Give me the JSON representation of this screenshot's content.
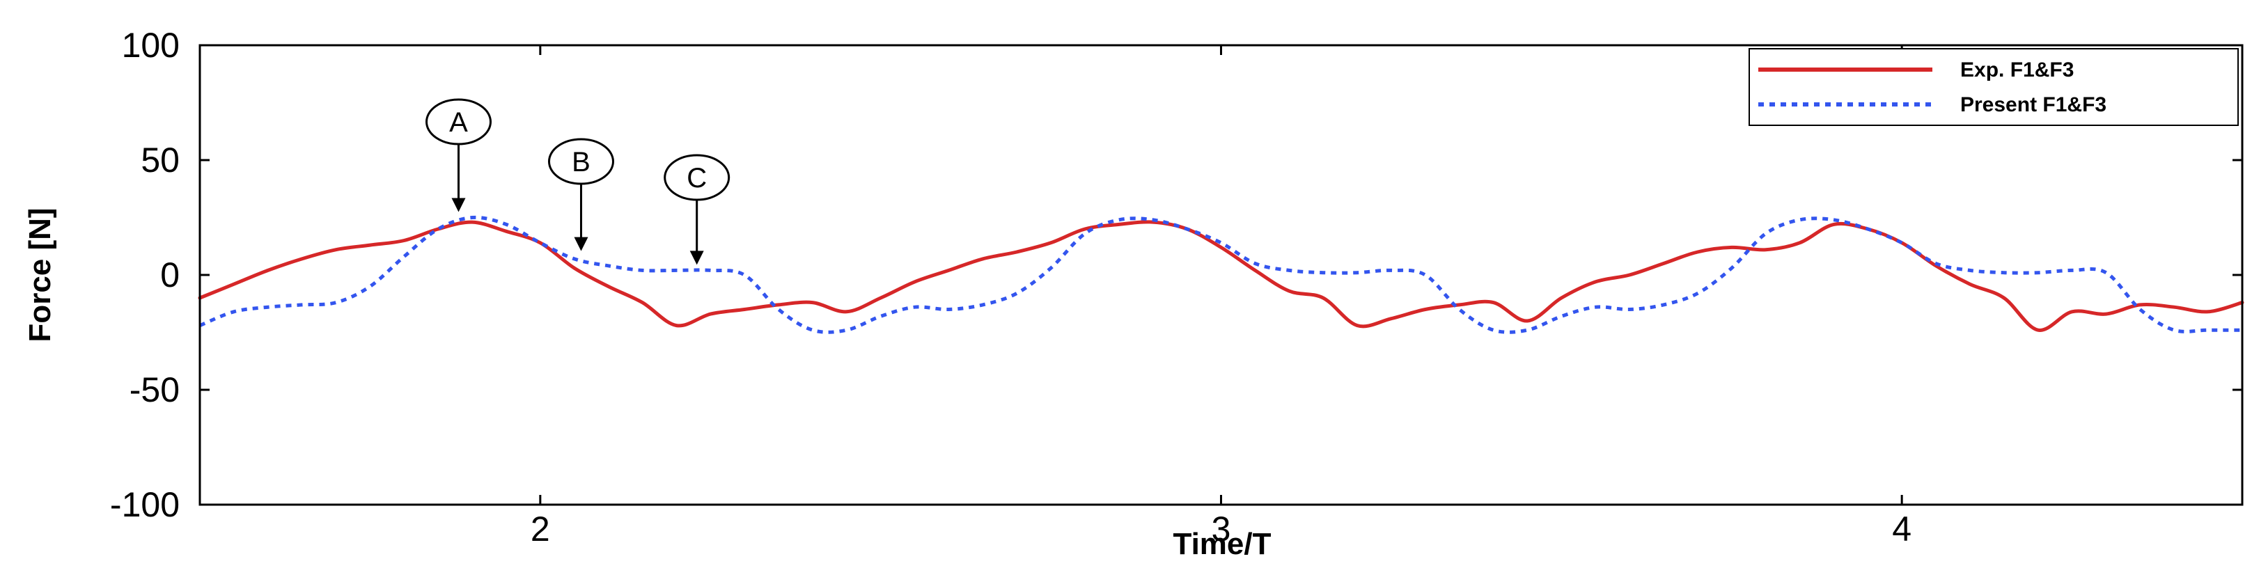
{
  "chart_data": {
    "type": "line",
    "title": "",
    "xlabel": "Time/T",
    "ylabel": "Force [N]",
    "xlim": [
      1.5,
      4.5
    ],
    "ylim": [
      -100,
      100
    ],
    "xticks": [
      2,
      3,
      4
    ],
    "xtick_labels": [
      "2",
      "3",
      "4"
    ],
    "yticks": [
      100,
      50,
      0,
      -50,
      -100
    ],
    "ytick_labels": [
      "100",
      "50",
      "0",
      "-50",
      "-100"
    ],
    "grid": false,
    "legend_position": "top-right",
    "series": [
      {
        "name": "Exp. F1&F3",
        "color": "#d62728",
        "style": "solid",
        "x": [
          1.5,
          1.55,
          1.6,
          1.65,
          1.7,
          1.75,
          1.8,
          1.85,
          1.9,
          1.95,
          2.0,
          2.05,
          2.1,
          2.15,
          2.2,
          2.25,
          2.3,
          2.35,
          2.4,
          2.45,
          2.5,
          2.55,
          2.6,
          2.65,
          2.7,
          2.75,
          2.8,
          2.85,
          2.9,
          2.95,
          3.0,
          3.05,
          3.1,
          3.15,
          3.2,
          3.25,
          3.3,
          3.35,
          3.4,
          3.45,
          3.5,
          3.55,
          3.6,
          3.65,
          3.7,
          3.75,
          3.8,
          3.85,
          3.9,
          3.95,
          4.0,
          4.05,
          4.1,
          4.15,
          4.2,
          4.25,
          4.3,
          4.35,
          4.4,
          4.45,
          4.5
        ],
        "values": [
          -10,
          -4,
          2,
          7,
          11,
          13,
          15,
          20,
          23,
          19,
          14,
          3,
          -5,
          -12,
          -22,
          -17,
          -15,
          -13,
          -12,
          -16,
          -10,
          -3,
          2,
          7,
          10,
          14,
          20,
          22,
          23,
          20,
          12,
          2,
          -7,
          -10,
          -22,
          -19,
          -15,
          -13,
          -12,
          -20,
          -10,
          -3,
          0,
          5,
          10,
          12,
          11,
          14,
          22,
          20,
          14,
          4,
          -4,
          -10,
          -24,
          -16,
          -17,
          -13,
          -14,
          -16,
          -12
        ]
      },
      {
        "name": "Present F1&F3",
        "color": "#3355ee",
        "style": "dotted",
        "x": [
          1.5,
          1.55,
          1.6,
          1.65,
          1.7,
          1.75,
          1.8,
          1.85,
          1.9,
          1.95,
          2.0,
          2.05,
          2.1,
          2.15,
          2.2,
          2.25,
          2.3,
          2.35,
          2.4,
          2.45,
          2.5,
          2.55,
          2.6,
          2.65,
          2.7,
          2.75,
          2.8,
          2.85,
          2.9,
          2.95,
          3.0,
          3.05,
          3.1,
          3.15,
          3.2,
          3.25,
          3.3,
          3.35,
          3.4,
          3.45,
          3.5,
          3.55,
          3.6,
          3.65,
          3.7,
          3.75,
          3.8,
          3.85,
          3.9,
          3.95,
          4.0,
          4.05,
          4.1,
          4.15,
          4.2,
          4.25,
          4.3,
          4.35,
          4.4,
          4.45,
          4.5
        ],
        "values": [
          -22,
          -16,
          -14,
          -13,
          -12,
          -5,
          8,
          20,
          25,
          22,
          14,
          7,
          4,
          2,
          2,
          2,
          0,
          -15,
          -24,
          -24,
          -18,
          -14,
          -15,
          -13,
          -8,
          3,
          18,
          24,
          24,
          20,
          14,
          5,
          2,
          1,
          1,
          2,
          0,
          -15,
          -24,
          -24,
          -18,
          -14,
          -15,
          -13,
          -8,
          3,
          18,
          24,
          24,
          20,
          14,
          5,
          2,
          1,
          1,
          2,
          1,
          -15,
          -24,
          -24,
          -24
        ]
      }
    ],
    "annotations": [
      {
        "label": "A",
        "x": 1.88,
        "y": 25
      },
      {
        "label": "B",
        "x": 2.06,
        "y": 8
      },
      {
        "label": "C",
        "x": 2.23,
        "y": 2
      }
    ]
  }
}
